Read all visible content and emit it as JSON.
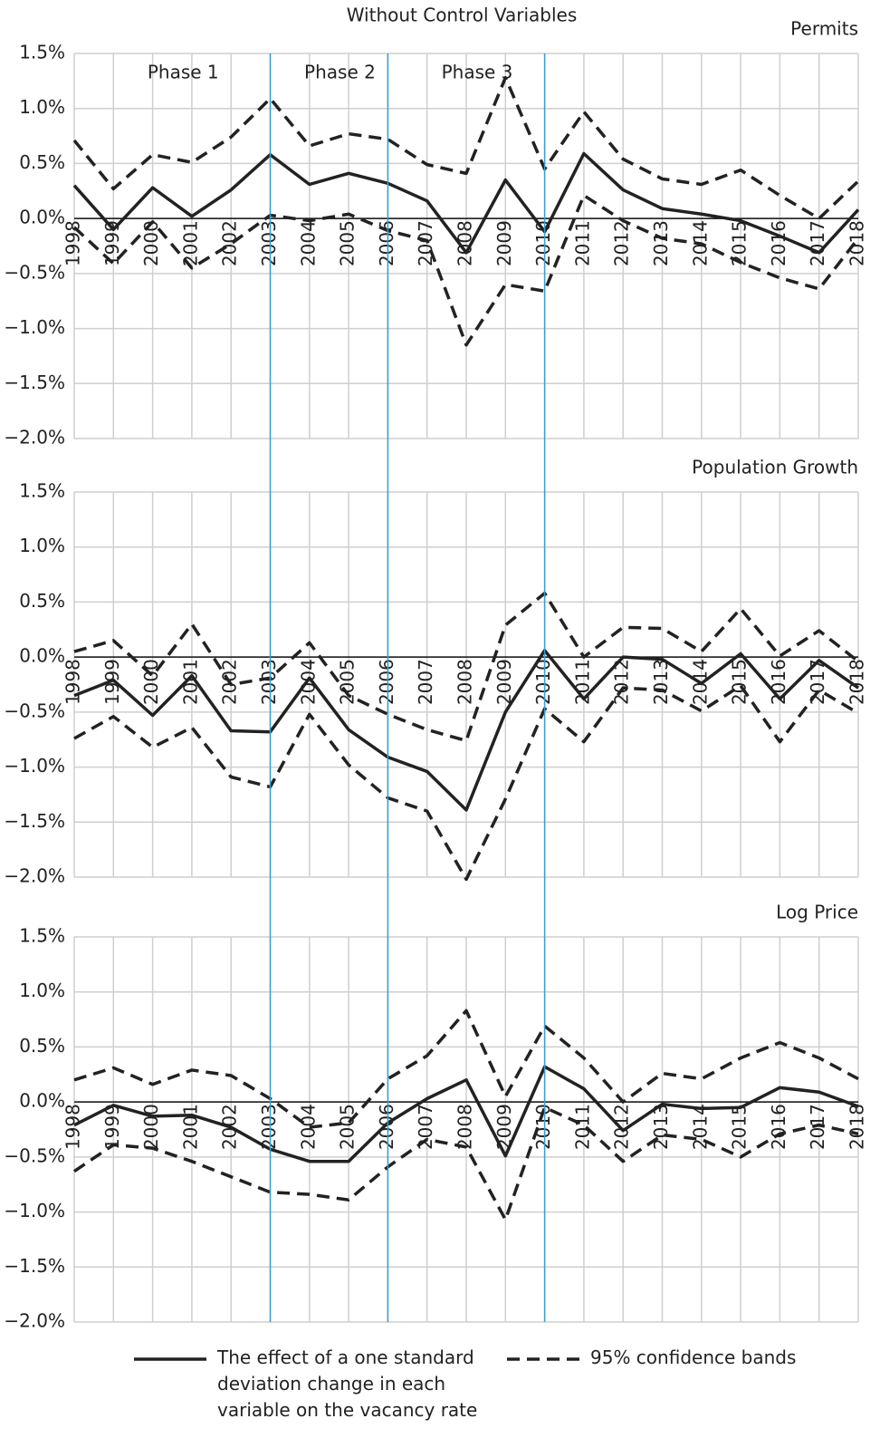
{
  "title": "Without Control Variables",
  "chart_data": [
    {
      "type": "line",
      "title": "Permits",
      "categories": [
        "1998",
        "1999",
        "2000",
        "2001",
        "2002",
        "2003",
        "2004",
        "2005",
        "2006",
        "2007",
        "2008",
        "2009",
        "2010",
        "2011",
        "2012",
        "2013",
        "2014",
        "2015",
        "2016",
        "2017",
        "2018"
      ],
      "annotations": [
        "Phase 1",
        "Phase 2",
        "Phase 3"
      ],
      "vlines": [
        "2003",
        "2006",
        "2010"
      ],
      "vline_color": "#3a9fd0",
      "ylim": [
        -2.0,
        1.5
      ],
      "yticks": [
        {
          "value": 1.5,
          "label": "1.5%"
        },
        {
          "value": 1.0,
          "label": "1.0%"
        },
        {
          "value": 0.5,
          "label": "0.5%"
        },
        {
          "value": 0.0,
          "label": "0.0%"
        },
        {
          "value": -0.5,
          "label": "−0.5%"
        },
        {
          "value": -1.0,
          "label": "−1.0%"
        },
        {
          "value": -1.5,
          "label": "−1.5%"
        },
        {
          "value": -2.0,
          "label": "−2.0%"
        }
      ],
      "grid": true,
      "series": [
        {
          "name": "The effect of a one standard deviation change in each variable on the vacancy rate",
          "color": "#222222",
          "style": "solid",
          "values": [
            0.3,
            -0.1,
            0.28,
            0.02,
            0.26,
            0.58,
            0.31,
            0.41,
            0.32,
            0.16,
            -0.31,
            0.35,
            -0.12,
            0.59,
            0.26,
            0.09,
            0.04,
            -0.02,
            -0.16,
            -0.31,
            0.08
          ]
        },
        {
          "name": "95% confidence bands",
          "color": "#222222",
          "style": "dashed",
          "values": [
            0.71,
            0.27,
            0.58,
            0.51,
            0.74,
            1.09,
            0.66,
            0.77,
            0.72,
            0.49,
            0.41,
            1.28,
            0.45,
            0.97,
            0.54,
            0.36,
            0.31,
            0.44,
            0.21,
            0.0,
            0.34
          ]
        },
        {
          "color": "#222222",
          "style": "dashed",
          "values": [
            -0.08,
            -0.41,
            -0.03,
            -0.45,
            -0.23,
            0.03,
            -0.02,
            0.04,
            -0.11,
            -0.2,
            -1.15,
            -0.6,
            -0.66,
            0.21,
            -0.02,
            -0.18,
            -0.23,
            -0.4,
            -0.54,
            -0.64,
            -0.18
          ]
        }
      ]
    },
    {
      "type": "line",
      "title": "Population Growth",
      "categories": [
        "1998",
        "1999",
        "2000",
        "2001",
        "2002",
        "2003",
        "2004",
        "2005",
        "2006",
        "2007",
        "2008",
        "2009",
        "2010",
        "2011",
        "2012",
        "2013",
        "2014",
        "2015",
        "2016",
        "2017",
        "2018"
      ],
      "ylim": [
        -2.0,
        1.5
      ],
      "yticks": [
        {
          "value": 1.5,
          "label": "1.5%"
        },
        {
          "value": 1.0,
          "label": "1.0%"
        },
        {
          "value": 0.5,
          "label": "0.5%"
        },
        {
          "value": 0.0,
          "label": "0.0%"
        },
        {
          "value": -0.5,
          "label": "−0.5%"
        },
        {
          "value": -1.0,
          "label": "−1.0%"
        },
        {
          "value": -1.5,
          "label": "−1.5%"
        },
        {
          "value": -2.0,
          "label": "−2.0%"
        }
      ],
      "grid": true,
      "series": [
        {
          "color": "#222222",
          "style": "solid",
          "values": [
            -0.35,
            -0.21,
            -0.53,
            -0.17,
            -0.67,
            -0.68,
            -0.19,
            -0.66,
            -0.91,
            -1.04,
            -1.39,
            -0.5,
            0.06,
            -0.38,
            0.0,
            -0.02,
            -0.24,
            0.03,
            -0.38,
            -0.03,
            -0.28
          ]
        },
        {
          "color": "#222222",
          "style": "dashed",
          "values": [
            0.05,
            0.15,
            -0.17,
            0.3,
            -0.25,
            -0.19,
            0.13,
            -0.35,
            -0.52,
            -0.66,
            -0.76,
            0.29,
            0.58,
            0.0,
            0.27,
            0.26,
            0.05,
            0.44,
            0.01,
            0.24,
            -0.04
          ]
        },
        {
          "color": "#222222",
          "style": "dashed",
          "values": [
            -0.74,
            -0.54,
            -0.82,
            -0.64,
            -1.09,
            -1.18,
            -0.52,
            -0.98,
            -1.28,
            -1.4,
            -2.02,
            -1.29,
            -0.47,
            -0.77,
            -0.28,
            -0.3,
            -0.49,
            -0.26,
            -0.77,
            -0.3,
            -0.51
          ]
        }
      ]
    },
    {
      "type": "line",
      "title": "Log Price",
      "categories": [
        "1998",
        "1999",
        "2000",
        "2001",
        "2002",
        "2003",
        "2004",
        "2005",
        "2006",
        "2007",
        "2008",
        "2009",
        "2010",
        "2011",
        "2012",
        "2013",
        "2014",
        "2015",
        "2016",
        "2017",
        "2018"
      ],
      "ylim": [
        -2.0,
        1.5
      ],
      "yticks": [
        {
          "value": 1.5,
          "label": "1.5%"
        },
        {
          "value": 1.0,
          "label": "1.0%"
        },
        {
          "value": 0.5,
          "label": "0.5%"
        },
        {
          "value": 0.0,
          "label": "0.0%"
        },
        {
          "value": -0.5,
          "label": "−0.5%"
        },
        {
          "value": -1.0,
          "label": "−1.0%"
        },
        {
          "value": -1.5,
          "label": "−1.5%"
        },
        {
          "value": -2.0,
          "label": "−2.0%"
        }
      ],
      "grid": true,
      "series": [
        {
          "color": "#222222",
          "style": "solid",
          "values": [
            -0.21,
            -0.03,
            -0.13,
            -0.12,
            -0.23,
            -0.43,
            -0.54,
            -0.54,
            -0.19,
            0.03,
            0.2,
            -0.49,
            0.32,
            0.12,
            -0.26,
            -0.02,
            -0.06,
            -0.05,
            0.13,
            0.09,
            -0.04
          ]
        },
        {
          "color": "#222222",
          "style": "dashed",
          "values": [
            0.2,
            0.31,
            0.16,
            0.29,
            0.24,
            0.03,
            -0.23,
            -0.19,
            0.21,
            0.42,
            0.83,
            0.05,
            0.69,
            0.4,
            0.0,
            0.26,
            0.21,
            0.4,
            0.54,
            0.4,
            0.21
          ]
        },
        {
          "color": "#222222",
          "style": "dashed",
          "values": [
            -0.63,
            -0.39,
            -0.42,
            -0.54,
            -0.68,
            -0.82,
            -0.84,
            -0.89,
            -0.59,
            -0.34,
            -0.41,
            -1.07,
            -0.05,
            -0.21,
            -0.54,
            -0.3,
            -0.34,
            -0.5,
            -0.29,
            -0.21,
            -0.29
          ]
        }
      ]
    }
  ]
}
